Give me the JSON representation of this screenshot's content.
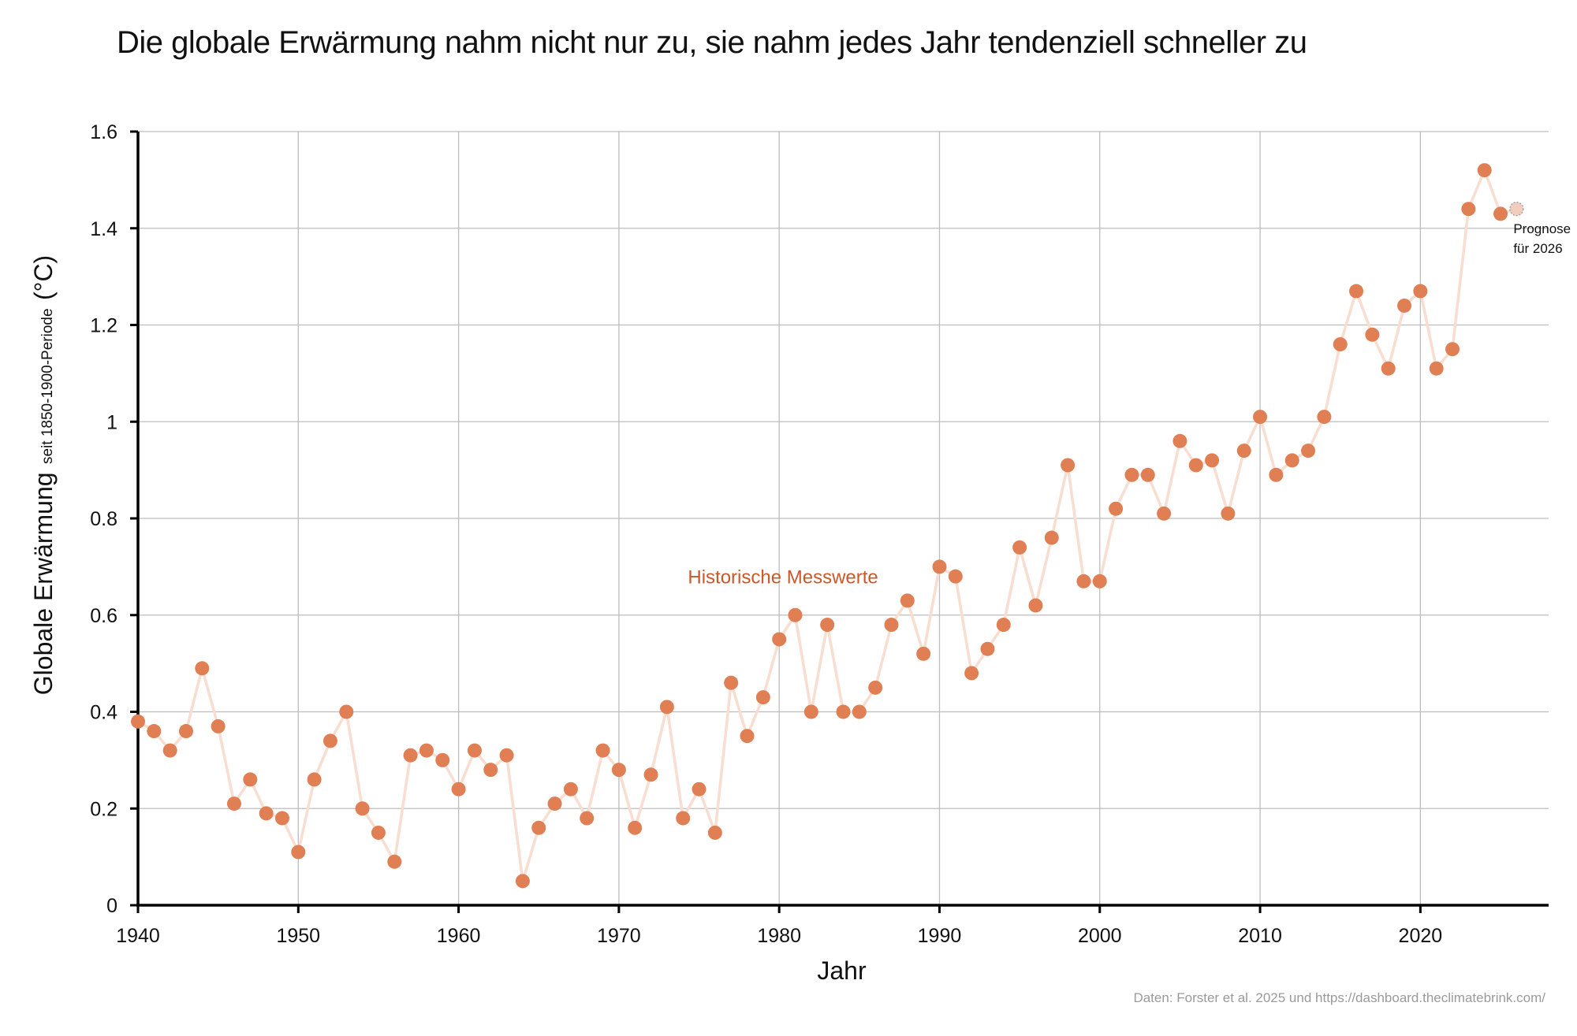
{
  "title": "Die globale Erwärmung nahm nicht nur zu, sie nahm jedes Jahr tendenziell schneller zu",
  "source": "Daten: Forster et al. 2025 und https://dashboard.theclimatebrink.com/",
  "colors": {
    "marker": "#e07f54",
    "line": "#f8ddd1",
    "series_label": "#c9582a",
    "forecast_fill": "#f0cdbd",
    "forecast_stroke": "#999999",
    "grid": "#bdbdbd",
    "axis": "#000000"
  },
  "chart_data": {
    "type": "line",
    "title": "Die globale Erwärmung nahm nicht nur zu, sie nahm jedes Jahr tendenziell schneller zu",
    "xlabel": "Jahr",
    "ylabel": "Globale Erwärmung",
    "ylabel_sub": "seit 1850-1900-Periode",
    "ylabel_unit": "(°C)",
    "xlim": [
      1940,
      2028
    ],
    "ylim": [
      0,
      1.6
    ],
    "xticks": [
      1940,
      1950,
      1960,
      1970,
      1980,
      1990,
      2000,
      2010,
      2020
    ],
    "yticks": [
      0,
      0.2,
      0.4,
      0.6,
      0.8,
      1.0,
      1.2,
      1.4,
      1.6
    ],
    "ytick_labels": [
      "0",
      "0.2",
      "0.4",
      "0.6",
      "0.8",
      "1",
      "1.2",
      "1.4",
      "1.6"
    ],
    "grid": true,
    "series": [
      {
        "name": "Historische Messwerte",
        "x": [
          1940,
          1941,
          1942,
          1943,
          1944,
          1945,
          1946,
          1947,
          1948,
          1949,
          1950,
          1951,
          1952,
          1953,
          1954,
          1955,
          1956,
          1957,
          1958,
          1959,
          1960,
          1961,
          1962,
          1963,
          1964,
          1965,
          1966,
          1967,
          1968,
          1969,
          1970,
          1971,
          1972,
          1973,
          1974,
          1975,
          1976,
          1977,
          1978,
          1979,
          1980,
          1981,
          1982,
          1983,
          1984,
          1985,
          1986,
          1987,
          1988,
          1989,
          1990,
          1991,
          1992,
          1993,
          1994,
          1995,
          1996,
          1997,
          1998,
          1999,
          2000,
          2001,
          2002,
          2003,
          2004,
          2005,
          2006,
          2007,
          2008,
          2009,
          2010,
          2011,
          2012,
          2013,
          2014,
          2015,
          2016,
          2017,
          2018,
          2019,
          2020,
          2021,
          2022,
          2023,
          2024,
          2025
        ],
        "values": [
          0.38,
          0.36,
          0.32,
          0.36,
          0.49,
          0.37,
          0.21,
          0.26,
          0.19,
          0.18,
          0.11,
          0.26,
          0.34,
          0.4,
          0.2,
          0.15,
          0.09,
          0.31,
          0.32,
          0.3,
          0.24,
          0.32,
          0.28,
          0.31,
          0.05,
          0.16,
          0.21,
          0.24,
          0.18,
          0.32,
          0.28,
          0.16,
          0.27,
          0.41,
          0.18,
          0.24,
          0.15,
          0.46,
          0.35,
          0.43,
          0.55,
          0.6,
          0.4,
          0.58,
          0.4,
          0.4,
          0.45,
          0.58,
          0.63,
          0.52,
          0.7,
          0.68,
          0.48,
          0.53,
          0.58,
          0.74,
          0.62,
          0.76,
          0.91,
          0.67,
          0.67,
          0.82,
          0.89,
          0.89,
          0.81,
          0.96,
          0.91,
          0.92,
          0.81,
          0.94,
          1.01,
          0.89,
          0.92,
          0.94,
          1.01,
          1.16,
          1.27,
          1.18,
          1.11,
          1.24,
          1.27,
          1.11,
          1.15,
          1.44,
          1.52,
          1.43
        ]
      },
      {
        "name": "Prognose für 2026",
        "x": [
          2026
        ],
        "values": [
          1.44
        ]
      }
    ],
    "annotations": [
      {
        "text": "Historische Messwerte",
        "x": 1974.5,
        "y": 0.68
      },
      {
        "text_lines": [
          "Prognose",
          "für 2026"
        ],
        "x": 2026,
        "y": 1.44
      }
    ]
  }
}
